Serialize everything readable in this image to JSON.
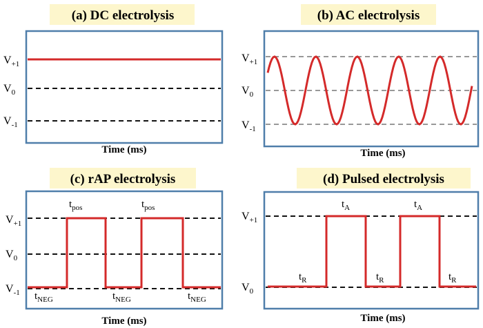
{
  "panels": [
    {
      "title": "(a) DC electrolysis",
      "x_label": "Time (ms)",
      "levels": [
        {
          "main": "V",
          "sub": "+1"
        },
        {
          "main": "V",
          "sub": "0"
        },
        {
          "main": "V",
          "sub": "-1"
        }
      ]
    },
    {
      "title": "(b) AC electrolysis",
      "x_label": "Time (ms)",
      "levels": [
        {
          "main": "V",
          "sub": "+1"
        },
        {
          "main": "V",
          "sub": "0"
        },
        {
          "main": "V",
          "sub": "-1"
        }
      ]
    },
    {
      "title": "(c) rAP electrolysis",
      "x_label": "Time (ms)",
      "levels": [
        {
          "main": "V",
          "sub": "+1"
        },
        {
          "main": "V",
          "sub": "0"
        },
        {
          "main": "V",
          "sub": "-1"
        }
      ],
      "annotations": [
        {
          "main": "t",
          "sub": "pos"
        },
        {
          "main": "t",
          "sub": "pos"
        },
        {
          "main": "t",
          "sub": "NEG"
        },
        {
          "main": "t",
          "sub": "NEG"
        },
        {
          "main": "t",
          "sub": "NEG"
        }
      ]
    },
    {
      "title": "(d) Pulsed electrolysis",
      "x_label": "Time (ms)",
      "levels": [
        {
          "main": "V",
          "sub": "+1"
        },
        {
          "main": "V",
          "sub": "0"
        }
      ],
      "annotations": [
        {
          "main": "t",
          "sub": "A"
        },
        {
          "main": "t",
          "sub": "A"
        },
        {
          "main": "t",
          "sub": "R"
        },
        {
          "main": "t",
          "sub": "R"
        },
        {
          "main": "t",
          "sub": "R"
        }
      ]
    }
  ]
}
